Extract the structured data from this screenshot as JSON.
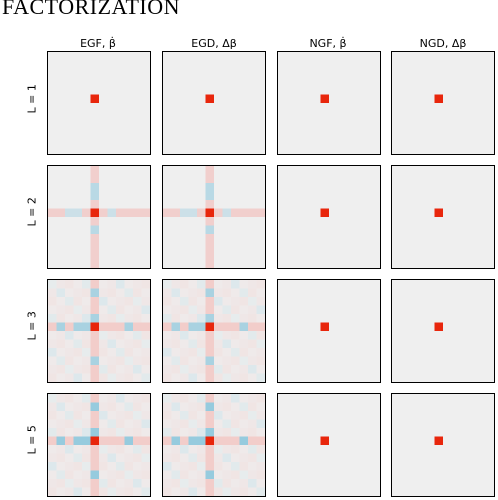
{
  "page": {
    "heading": "FACTORIZATION"
  },
  "chart_data": {
    "type": "heatmap",
    "columns": [
      "EGF, β̇",
      "EGD, Δβ",
      "NGF, β̇",
      "NGD, Δβ"
    ],
    "rows": [
      "L = 1",
      "L = 2",
      "L = 3",
      "L = 5"
    ],
    "grid_size": 12,
    "center": [
      5,
      5
    ],
    "colors": {
      "background": "#efefef",
      "strong_positive": "#e8260c",
      "positive": "#f3b5b0",
      "negative": "#8cc6dc",
      "frame": "#000000"
    },
    "panels": [
      {
        "row": "L = 1",
        "column": "EGF, β̇",
        "pattern": "point"
      },
      {
        "row": "L = 1",
        "column": "EGD, Δβ",
        "pattern": "point"
      },
      {
        "row": "L = 1",
        "column": "NGF, β̇",
        "pattern": "point"
      },
      {
        "row": "L = 1",
        "column": "NGD, Δβ",
        "pattern": "point"
      },
      {
        "row": "L = 2",
        "column": "EGF, β̇",
        "pattern": "cross"
      },
      {
        "row": "L = 2",
        "column": "EGD, Δβ",
        "pattern": "cross"
      },
      {
        "row": "L = 2",
        "column": "NGF, β̇",
        "pattern": "point"
      },
      {
        "row": "L = 2",
        "column": "NGD, Δβ",
        "pattern": "point"
      },
      {
        "row": "L = 3",
        "column": "EGF, β̇",
        "pattern": "grid"
      },
      {
        "row": "L = 3",
        "column": "EGD, Δβ",
        "pattern": "grid"
      },
      {
        "row": "L = 3",
        "column": "NGF, β̇",
        "pattern": "point"
      },
      {
        "row": "L = 3",
        "column": "NGD, Δβ",
        "pattern": "point"
      },
      {
        "row": "L = 5",
        "column": "EGF, β̇",
        "pattern": "grid"
      },
      {
        "row": "L = 5",
        "column": "EGD, Δβ",
        "pattern": "grid"
      },
      {
        "row": "L = 5",
        "column": "NGF, β̇",
        "pattern": "point"
      },
      {
        "row": "L = 5",
        "column": "NGD, Δβ",
        "pattern": "point"
      }
    ]
  }
}
